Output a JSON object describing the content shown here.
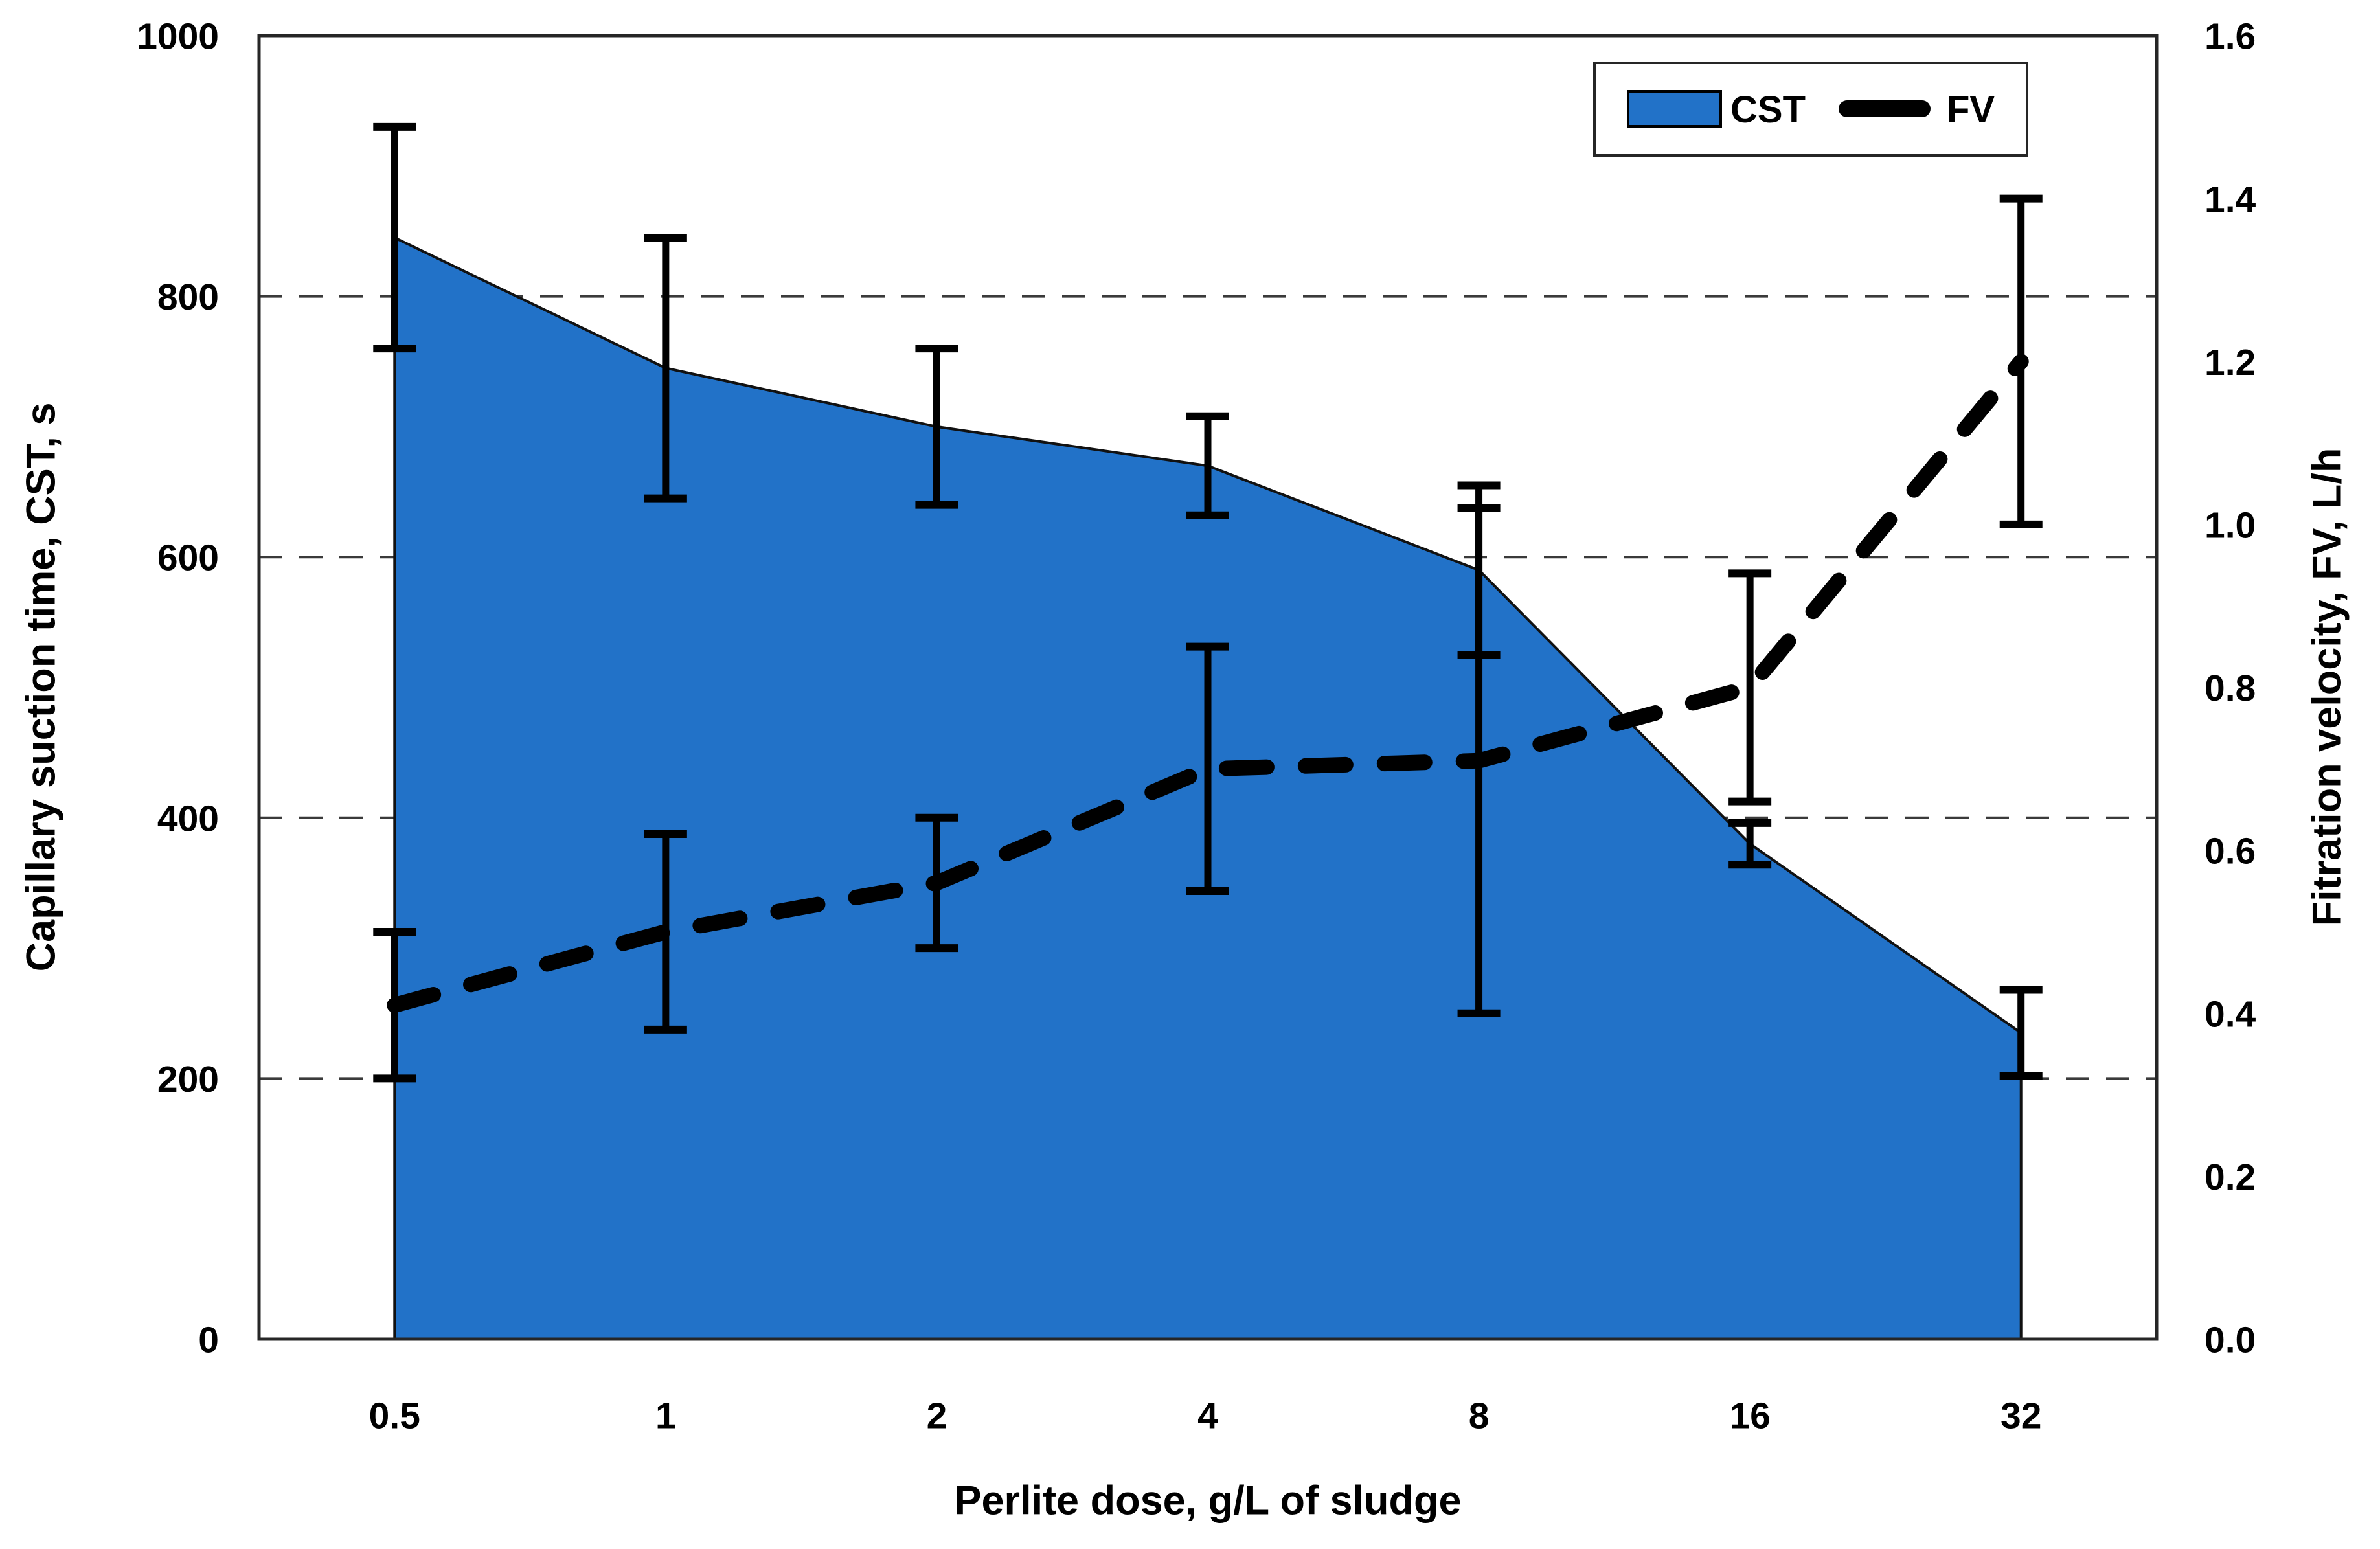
{
  "chart_data": {
    "type": "combo",
    "subtype": [
      "area",
      "dashed-line"
    ],
    "categories": [
      "0.5",
      "1",
      "2",
      "4",
      "8",
      "16",
      "32"
    ],
    "series": [
      {
        "name": "CST",
        "type": "area",
        "axis": "left",
        "color": "#2272C8",
        "values": [
          845,
          745,
          700,
          670,
          590,
          380,
          235
        ],
        "error": [
          85,
          100,
          60,
          38,
          65,
          16,
          33
        ]
      },
      {
        "name": "FV",
        "type": "dashed-line",
        "axis": "right",
        "color": "#000000",
        "values": [
          0.41,
          0.5,
          0.56,
          0.7,
          0.71,
          0.8,
          1.2
        ],
        "error": [
          0.09,
          0.12,
          0.08,
          0.15,
          0.31,
          0.14,
          0.2
        ]
      }
    ],
    "title": "",
    "xlabel": "Perlite dose, g/L of sludge",
    "ylabel_left": "Capillary suction time, CST, s",
    "ylabel_right": "Fitration velocity, FV, L/h",
    "ylim_left": [
      0,
      1000
    ],
    "ytick_step_left": 200,
    "ylim_right": [
      0.0,
      1.6
    ],
    "ytick_step_right": 0.2,
    "gridlines_left": [
      200,
      400,
      600,
      800
    ],
    "grid_on": true,
    "legend": {
      "position": "top-right",
      "items": [
        {
          "label": "CST",
          "swatch": "area"
        },
        {
          "label": "FV",
          "swatch": "dash"
        }
      ]
    },
    "colors": {
      "area_fill": "#2272C8",
      "area_outline": "#111111",
      "line_and_error_bars": "#000000",
      "plot_border": "#262626",
      "gridline": "#3a3a3a",
      "background": "#ffffff"
    }
  }
}
